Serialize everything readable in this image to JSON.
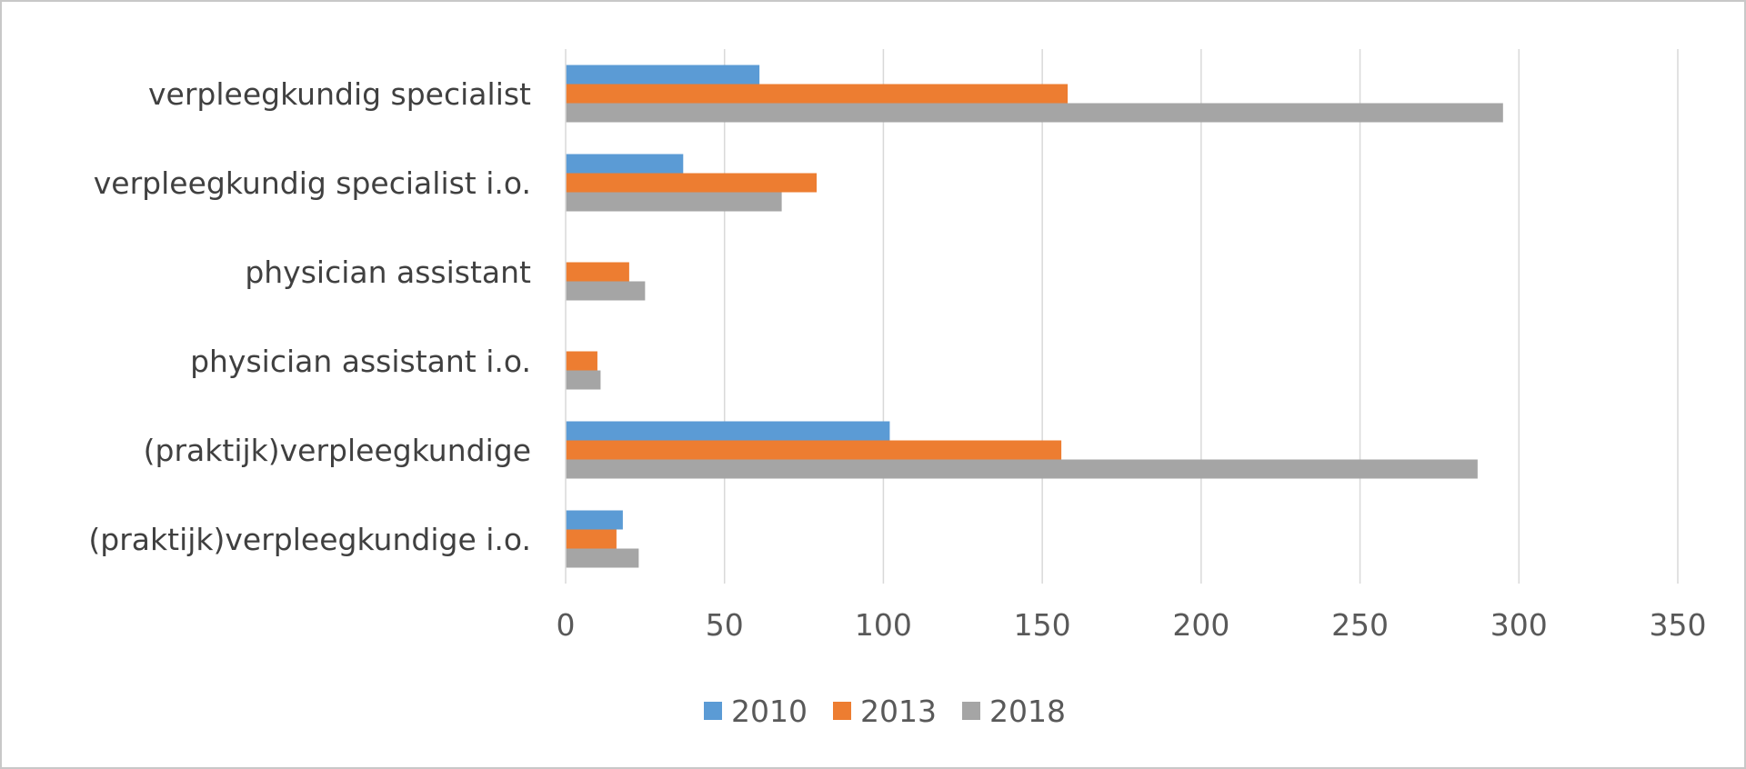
{
  "chart_data": {
    "type": "bar",
    "orientation": "horizontal",
    "categories": [
      "verpleegkundig specialist",
      "verpleegkundig specialist i.o.",
      "physician assistant",
      "physician assistant i.o.",
      "(praktijk)verpleegkundige",
      "(praktijk)verpleegkundige i.o."
    ],
    "series": [
      {
        "name": "2010",
        "color": "#5b9bd5",
        "values": [
          61,
          37,
          0,
          0,
          102,
          18
        ]
      },
      {
        "name": "2013",
        "color": "#ed7d31",
        "values": [
          158,
          79,
          20,
          10,
          156,
          16
        ]
      },
      {
        "name": "2018",
        "color": "#a5a5a5",
        "values": [
          295,
          68,
          25,
          11,
          287,
          23
        ]
      }
    ],
    "title": "",
    "xlabel": "",
    "ylabel": "",
    "xlim": [
      0,
      350
    ],
    "ticks": [
      0,
      50,
      100,
      150,
      200,
      250,
      300,
      350
    ],
    "tick_labels": [
      "0",
      "50",
      "100",
      "150",
      "200",
      "250",
      "300",
      "350"
    ],
    "gridlines": true,
    "legend_position": "bottom"
  }
}
